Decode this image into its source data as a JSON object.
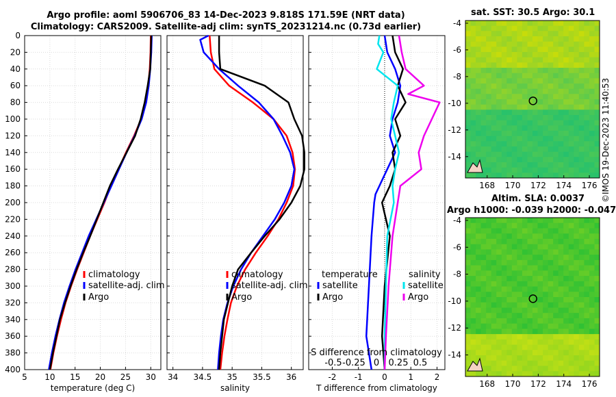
{
  "header": {
    "line1": "Argo profile: aoml 5906706_83 14-Dec-2023 9.818S 171.59E (NRT data)",
    "line2": "Climatology: CARS2009. Satellite-adj clim: synTS_20231214.nc (0.73d earlier)"
  },
  "stamp": "©IMOS 19-Dec-2023 11:40:53",
  "colors": {
    "climatology": "#ff0000",
    "satellite": "#0000ff",
    "argo": "#000000",
    "sat_salinity": "#00e5ee",
    "argo_salinity": "#ee00ee"
  },
  "chart_data": [
    {
      "type": "line",
      "panel": "temperature",
      "xlabel": "temperature (deg C)",
      "ylabel": "",
      "xlim": [
        5,
        32
      ],
      "ylim": [
        400,
        0
      ],
      "xticks": [
        5,
        10,
        15,
        20,
        25,
        30
      ],
      "yticks": [
        0,
        20,
        40,
        60,
        80,
        100,
        120,
        140,
        160,
        180,
        200,
        220,
        240,
        260,
        280,
        300,
        320,
        340,
        360,
        380,
        400
      ],
      "legend": [
        "climatology",
        "satellite-adj. clim",
        "Argo"
      ],
      "series": [
        {
          "name": "climatology",
          "depth": [
            0,
            20,
            40,
            60,
            80,
            100,
            120,
            140,
            160,
            180,
            200,
            220,
            240,
            260,
            280,
            300,
            320,
            340,
            360,
            380,
            400
          ],
          "values": [
            30.0,
            29.95,
            29.8,
            29.5,
            29.0,
            28.1,
            26.7,
            25.1,
            23.6,
            22.1,
            20.8,
            19.4,
            18.0,
            16.7,
            15.4,
            14.2,
            13.1,
            12.2,
            11.4,
            10.7,
            10.1
          ]
        },
        {
          "name": "satellite-adj. clim",
          "depth": [
            0,
            20,
            40,
            60,
            80,
            100,
            120,
            140,
            160,
            180,
            200,
            220,
            240,
            260,
            280,
            300,
            320,
            340,
            360,
            380,
            400
          ],
          "values": [
            30.2,
            30.1,
            29.9,
            29.6,
            29.1,
            28.2,
            26.8,
            25.2,
            23.7,
            22.2,
            20.7,
            19.2,
            17.7,
            16.4,
            15.1,
            13.9,
            12.8,
            11.9,
            11.1,
            10.4,
            9.8
          ]
        },
        {
          "name": "Argo",
          "depth": [
            0,
            20,
            40,
            60,
            80,
            100,
            120,
            140,
            160,
            180,
            200,
            220,
            240,
            260,
            280,
            300,
            320,
            340,
            360,
            380,
            400
          ],
          "values": [
            30.1,
            30.0,
            29.9,
            29.4,
            28.8,
            28.0,
            26.9,
            25.2,
            23.5,
            21.9,
            20.6,
            19.3,
            18.0,
            16.6,
            15.3,
            14.1,
            13.0,
            12.0,
            11.3,
            10.6,
            10.0
          ]
        }
      ]
    },
    {
      "type": "line",
      "panel": "salinity",
      "xlabel": "salinity",
      "xlim": [
        33.9,
        36.2
      ],
      "ylim": [
        400,
        0
      ],
      "xticks": [
        34,
        34.5,
        35,
        35.5,
        36
      ],
      "legend": [
        "climatology",
        "satellite-adj. clim",
        "Argo"
      ],
      "series": [
        {
          "name": "climatology",
          "depth": [
            0,
            20,
            40,
            60,
            80,
            100,
            120,
            140,
            160,
            180,
            200,
            220,
            240,
            260,
            280,
            300,
            320,
            340,
            360,
            380,
            400
          ],
          "values": [
            34.62,
            34.64,
            34.7,
            34.95,
            35.35,
            35.7,
            35.92,
            36.02,
            36.06,
            36.03,
            35.92,
            35.78,
            35.6,
            35.4,
            35.22,
            35.08,
            34.98,
            34.92,
            34.87,
            34.83,
            34.8
          ]
        },
        {
          "name": "satellite-adj. clim",
          "depth": [
            0,
            5,
            20,
            40,
            60,
            80,
            100,
            120,
            140,
            160,
            180,
            200,
            220,
            240,
            260,
            280,
            300,
            320,
            340,
            360,
            380,
            400
          ],
          "values": [
            34.6,
            34.46,
            34.52,
            34.78,
            35.1,
            35.45,
            35.7,
            35.85,
            35.98,
            36.05,
            36.0,
            35.88,
            35.72,
            35.52,
            35.32,
            35.15,
            35.02,
            34.92,
            34.85,
            34.81,
            34.78,
            34.76
          ]
        },
        {
          "name": "Argo",
          "depth": [
            0,
            20,
            40,
            60,
            80,
            100,
            120,
            140,
            160,
            180,
            200,
            220,
            240,
            260,
            280,
            300,
            320,
            340,
            360,
            380,
            400
          ],
          "values": [
            34.78,
            34.78,
            34.8,
            35.55,
            35.95,
            36.05,
            36.18,
            36.22,
            36.22,
            36.15,
            36.0,
            35.8,
            35.55,
            35.32,
            35.1,
            35.0,
            34.93,
            34.86,
            34.83,
            34.8,
            34.78
          ]
        }
      ]
    },
    {
      "type": "line",
      "panel": "difference",
      "xlabel": "T difference from climatology",
      "top_xlabel": "S difference from climatology",
      "xlim": [
        -2.9,
        2.3
      ],
      "ylim": [
        400,
        0
      ],
      "xticks": [
        -2,
        -1,
        0,
        1,
        2
      ],
      "top_xticks": [
        -0.5,
        -0.25,
        0,
        0.25,
        0.5
      ],
      "top_tick_labels": [
        "-0.5",
        "-0.25",
        "0",
        "0.25",
        "0.5"
      ],
      "legend_left": {
        "title": "temperature",
        "items": [
          "satellite",
          "Argo"
        ]
      },
      "legend_right": {
        "title": "salinity",
        "items": [
          "satellite",
          "Argo"
        ]
      },
      "series": [
        {
          "name": "temperature satellite",
          "depth": [
            0,
            20,
            40,
            60,
            80,
            100,
            120,
            140,
            160,
            180,
            190,
            200,
            240,
            300,
            360,
            400
          ],
          "values": [
            0.0,
            0.1,
            0.4,
            0.6,
            0.5,
            0.3,
            0.2,
            0.4,
            0.1,
            -0.2,
            -0.35,
            -0.4,
            -0.5,
            -0.6,
            -0.7,
            -0.5
          ]
        },
        {
          "name": "temperature Argo",
          "depth": [
            0,
            20,
            40,
            60,
            80,
            100,
            120,
            140,
            160,
            180,
            200,
            240,
            300,
            360,
            400
          ],
          "values": [
            0.3,
            0.4,
            0.7,
            0.5,
            0.8,
            0.4,
            0.6,
            0.3,
            0.4,
            0.2,
            -0.1,
            0.2,
            0.0,
            -0.1,
            0.0
          ]
        },
        {
          "name": "salinity satellite",
          "depth": [
            0,
            10,
            20,
            40,
            60,
            80,
            100,
            120,
            140,
            160,
            180,
            200,
            240,
            300,
            360,
            400
          ],
          "values": [
            -0.2,
            -0.25,
            -0.05,
            -0.3,
            0.5,
            0.35,
            0.25,
            0.4,
            0.55,
            0.4,
            0.3,
            0.35,
            0.1,
            0.05,
            0.0,
            0.0
          ]
        },
        {
          "name": "salinity Argo",
          "depth": [
            0,
            20,
            40,
            60,
            70,
            80,
            100,
            120,
            140,
            160,
            180,
            200,
            240,
            300,
            360,
            400
          ],
          "values": [
            0.55,
            0.65,
            0.8,
            1.5,
            0.9,
            2.1,
            1.8,
            1.5,
            1.3,
            1.4,
            0.6,
            0.5,
            0.3,
            0.15,
            0.05,
            0.0
          ]
        }
      ]
    },
    {
      "type": "heatmap",
      "panel": "sst-map",
      "title": "sat. SST: 30.5 Argo: 30.1",
      "xticks": [
        168,
        170,
        172,
        174,
        176
      ],
      "yticks": [
        -4,
        -6,
        -8,
        -10,
        -12,
        -14
      ],
      "xlim": [
        166.3,
        176.8
      ],
      "ylim": [
        -15.6,
        -3.8
      ],
      "argo_position": [
        171.59,
        -9.82
      ]
    },
    {
      "type": "heatmap",
      "panel": "sla-map",
      "title_line1": "Altim. SLA: 0.0037",
      "title_line2": "Argo h1000: -0.039 h2000: -0.047",
      "xticks": [
        168,
        170,
        172,
        174,
        176
      ],
      "yticks": [
        -4,
        -6,
        -8,
        -10,
        -12,
        -14
      ],
      "xlim": [
        166.3,
        176.8
      ],
      "ylim": [
        -15.6,
        -3.8
      ],
      "argo_position": [
        171.59,
        -9.82
      ]
    }
  ]
}
